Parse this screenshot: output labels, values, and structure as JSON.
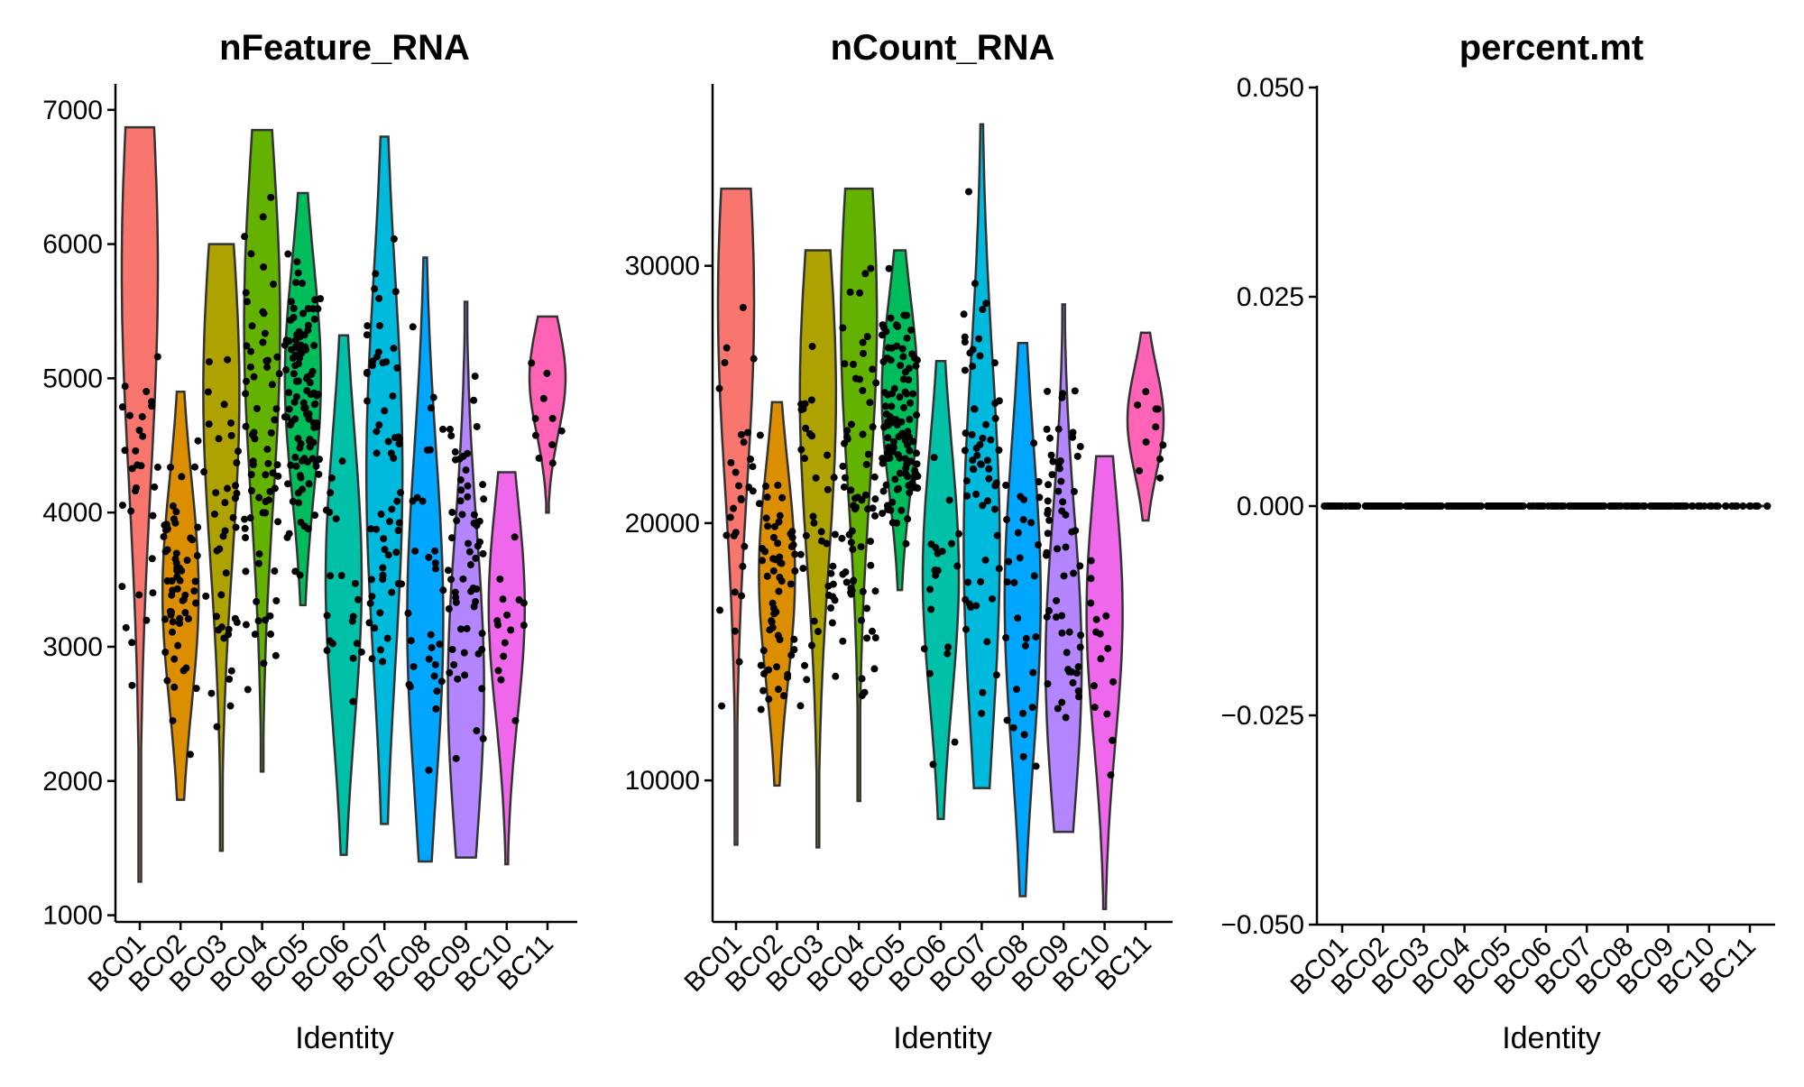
{
  "chart_data": [
    {
      "type": "violin",
      "title": "nFeature_RNA",
      "xlabel": "Identity",
      "ylabel": "",
      "ylim": [
        950,
        7180
      ],
      "yticks": [
        1000,
        2000,
        3000,
        4000,
        5000,
        6000,
        7000
      ],
      "ytick_labels": [
        "1000",
        "2000",
        "3000",
        "4000",
        "5000",
        "6000",
        "7000"
      ],
      "categories": [
        "BC01",
        "BC02",
        "BC03",
        "BC04",
        "BC05",
        "BC06",
        "BC07",
        "BC08",
        "BC09",
        "BC10",
        "BC11"
      ],
      "colors": [
        "#F8766D",
        "#DB8E00",
        "#AEA200",
        "#64B200",
        "#00BD5C",
        "#00C1A7",
        "#00BADE",
        "#00A6FF",
        "#B385FF",
        "#EF67EB",
        "#FF63B6"
      ],
      "series": [
        {
          "category": "BC01",
          "min": 1250,
          "max": 6870,
          "mode": 5800,
          "n": 30
        },
        {
          "category": "BC02",
          "min": 1860,
          "max": 4900,
          "mode": 3400,
          "n": 60
        },
        {
          "category": "BC03",
          "min": 1480,
          "max": 6000,
          "mode": 4900,
          "n": 40
        },
        {
          "category": "BC04",
          "min": 2070,
          "max": 6850,
          "mode": 5400,
          "n": 70
        },
        {
          "category": "BC05",
          "min": 3310,
          "max": 6380,
          "mode": 5000,
          "n": 110
        },
        {
          "category": "BC06",
          "min": 1450,
          "max": 5320,
          "mode": 3500,
          "n": 20
        },
        {
          "category": "BC07",
          "min": 1680,
          "max": 6800,
          "mode": 4300,
          "n": 60
        },
        {
          "category": "BC08",
          "min": 1400,
          "max": 5900,
          "mode": 3200,
          "n": 30
        },
        {
          "category": "BC09",
          "min": 1430,
          "max": 5570,
          "mode": 2700,
          "n": 60
        },
        {
          "category": "BC10",
          "min": 1380,
          "max": 4300,
          "mode": 3300,
          "n": 15
        },
        {
          "category": "BC11",
          "min": 4000,
          "max": 5460,
          "mode": 5000,
          "n": 10
        }
      ]
    },
    {
      "type": "violin",
      "title": "nCount_RNA",
      "xlabel": "Identity",
      "ylabel": "",
      "ylim": [
        4500,
        37000
      ],
      "yticks": [
        10000,
        20000,
        30000
      ],
      "ytick_labels": [
        "10000",
        "20000",
        "30000"
      ],
      "categories": [
        "BC01",
        "BC02",
        "BC03",
        "BC04",
        "BC05",
        "BC06",
        "BC07",
        "BC08",
        "BC09",
        "BC10",
        "BC11"
      ],
      "colors": [
        "#F8766D",
        "#DB8E00",
        "#AEA200",
        "#64B200",
        "#00BD5C",
        "#00C1A7",
        "#00BADE",
        "#00A6FF",
        "#B385FF",
        "#EF67EB",
        "#FF63B6"
      ],
      "series": [
        {
          "category": "BC01",
          "min": 7500,
          "max": 33000,
          "mode": 28500,
          "n": 30
        },
        {
          "category": "BC02",
          "min": 9800,
          "max": 24700,
          "mode": 18000,
          "n": 60
        },
        {
          "category": "BC03",
          "min": 7400,
          "max": 30600,
          "mode": 25000,
          "n": 40
        },
        {
          "category": "BC04",
          "min": 9200,
          "max": 33000,
          "mode": 28000,
          "n": 70
        },
        {
          "category": "BC05",
          "min": 17400,
          "max": 30600,
          "mode": 25000,
          "n": 110
        },
        {
          "category": "BC06",
          "min": 8500,
          "max": 26300,
          "mode": 18000,
          "n": 20
        },
        {
          "category": "BC07",
          "min": 9700,
          "max": 35500,
          "mode": 19000,
          "n": 60
        },
        {
          "category": "BC08",
          "min": 5500,
          "max": 27000,
          "mode": 17000,
          "n": 30
        },
        {
          "category": "BC09",
          "min": 8000,
          "max": 28500,
          "mode": 14500,
          "n": 60
        },
        {
          "category": "BC10",
          "min": 5000,
          "max": 22600,
          "mode": 16500,
          "n": 15
        },
        {
          "category": "BC11",
          "min": 20100,
          "max": 27400,
          "mode": 24000,
          "n": 10
        }
      ]
    },
    {
      "type": "violin",
      "title": "percent.mt",
      "xlabel": "Identity",
      "ylabel": "",
      "ylim": [
        -0.05,
        0.05
      ],
      "yticks": [
        -0.05,
        -0.025,
        0,
        0.025,
        0.05
      ],
      "ytick_labels": [
        "−0.050",
        "−0.025",
        "0.000",
        "0.025",
        "0.050"
      ],
      "categories": [
        "BC01",
        "BC02",
        "BC03",
        "BC04",
        "BC05",
        "BC06",
        "BC07",
        "BC08",
        "BC09",
        "BC10",
        "BC11"
      ],
      "colors": [
        "#F8766D",
        "#DB8E00",
        "#AEA200",
        "#64B200",
        "#00BD5C",
        "#00C1A7",
        "#00BADE",
        "#00A6FF",
        "#B385FF",
        "#EF67EB",
        "#FF63B6"
      ],
      "series": [
        {
          "category": "BC01",
          "min": 0,
          "max": 0,
          "mode": 0,
          "n": 30
        },
        {
          "category": "BC02",
          "min": 0,
          "max": 0,
          "mode": 0,
          "n": 60
        },
        {
          "category": "BC03",
          "min": 0,
          "max": 0,
          "mode": 0,
          "n": 40
        },
        {
          "category": "BC04",
          "min": 0,
          "max": 0,
          "mode": 0,
          "n": 70
        },
        {
          "category": "BC05",
          "min": 0,
          "max": 0,
          "mode": 0,
          "n": 110
        },
        {
          "category": "BC06",
          "min": 0,
          "max": 0,
          "mode": 0,
          "n": 20
        },
        {
          "category": "BC07",
          "min": 0,
          "max": 0,
          "mode": 0,
          "n": 60
        },
        {
          "category": "BC08",
          "min": 0,
          "max": 0,
          "mode": 0,
          "n": 30
        },
        {
          "category": "BC09",
          "min": 0,
          "max": 0,
          "mode": 0,
          "n": 60
        },
        {
          "category": "BC10",
          "min": 0,
          "max": 0,
          "mode": 0,
          "n": 15
        },
        {
          "category": "BC11",
          "min": 0,
          "max": 0,
          "mode": 0,
          "n": 10
        }
      ]
    }
  ]
}
